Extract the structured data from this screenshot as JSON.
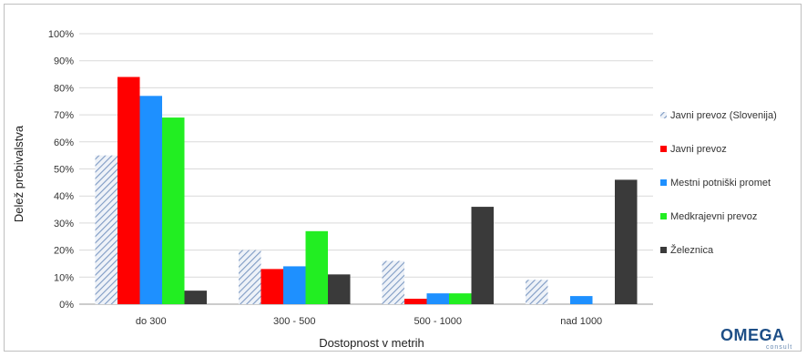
{
  "chart_data": {
    "type": "bar",
    "title": "",
    "xlabel": "Dostopnost v metrih",
    "ylabel": "Delež prebivalstva",
    "ylim": [
      0,
      100
    ],
    "yticks": [
      "0%",
      "10%",
      "20%",
      "30%",
      "40%",
      "50%",
      "60%",
      "70%",
      "80%",
      "90%",
      "100%"
    ],
    "grid": true,
    "legend_position": "right",
    "categories": [
      "do 300",
      "300 - 500",
      "500 - 1000",
      "nad 1000"
    ],
    "series": [
      {
        "name": "Javni prevoz (Slovenija)",
        "color": "#b8c8de",
        "pattern": "hatched",
        "values": [
          55,
          20,
          16,
          9
        ]
      },
      {
        "name": "Javni prevoz",
        "color": "#ff0000",
        "values": [
          84,
          13,
          2,
          0
        ]
      },
      {
        "name": "Mestni potniški promet",
        "color": "#1e90ff",
        "values": [
          77,
          14,
          4,
          3
        ]
      },
      {
        "name": "Medkrajevni prevoz",
        "color": "#22ee22",
        "values": [
          69,
          27,
          4,
          0
        ]
      },
      {
        "name": "Železnica",
        "color": "#3a3a3a",
        "values": [
          5,
          11,
          36,
          46
        ]
      }
    ]
  },
  "logo": {
    "name": "OMEGA",
    "sub": "consult"
  }
}
